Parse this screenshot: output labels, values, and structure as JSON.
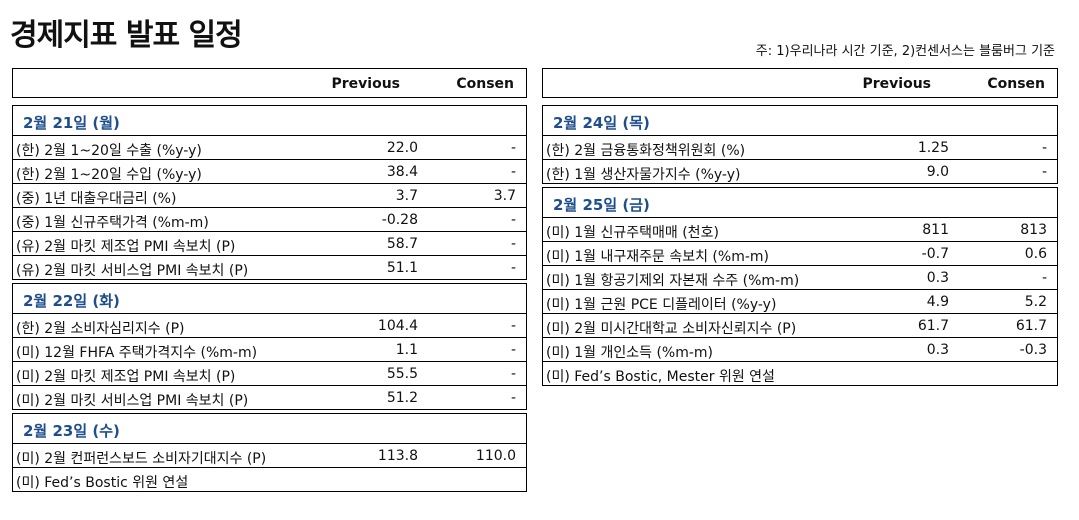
{
  "page": {
    "title": "경제지표 발표 일정",
    "note": "주: 1)우리나라 시간 기준, 2)컨센서스는 블룸버그 기준"
  },
  "columns": {
    "previous": "Previous",
    "consensus": "Consen"
  },
  "left": [
    {
      "date": "2월 21일 (월)",
      "rows": [
        {
          "label": "(한) 2월 1~20일 수출 (%y-y)",
          "previous": "22.0",
          "consensus": "-"
        },
        {
          "label": "(한) 2월 1~20일 수입 (%y-y)",
          "previous": "38.4",
          "consensus": "-"
        },
        {
          "label": "(중) 1년 대출우대금리 (%)",
          "previous": "3.7",
          "consensus": "3.7"
        },
        {
          "label": "(중) 1월 신규주택가격 (%m-m)",
          "previous": "-0.28",
          "consensus": "-"
        },
        {
          "label": "(유) 2월 마킷 제조업 PMI 속보치 (P)",
          "previous": "58.7",
          "consensus": "-"
        },
        {
          "label": "(유) 2월 마킷 서비스업 PMI 속보치 (P)",
          "previous": "51.1",
          "consensus": "-"
        }
      ]
    },
    {
      "date": "2월 22일 (화)",
      "rows": [
        {
          "label": "(한) 2월 소비자심리지수 (P)",
          "previous": "104.4",
          "consensus": "-"
        },
        {
          "label": "(미) 12월 FHFA 주택가격지수 (%m-m)",
          "previous": "1.1",
          "consensus": "-"
        },
        {
          "label": "(미) 2월 마킷 제조업 PMI 속보치 (P)",
          "previous": "55.5",
          "consensus": "-"
        },
        {
          "label": "(미) 2월 마킷 서비스업 PMI 속보치 (P)",
          "previous": "51.2",
          "consensus": "-"
        }
      ]
    },
    {
      "date": "2월 23일 (수)",
      "rows": [
        {
          "label": "(미) 2월 컨퍼런스보드 소비자기대지수 (P)",
          "previous": "113.8",
          "consensus": "110.0"
        },
        {
          "label": "(미) Fed’s Bostic 위원 연설",
          "previous": "",
          "consensus": ""
        }
      ]
    }
  ],
  "right": [
    {
      "date": "2월 24일 (목)",
      "rows": [
        {
          "label": "(한) 2월 금융통화정책위원회 (%)",
          "previous": "1.25",
          "consensus": "-"
        },
        {
          "label": "(한) 1월 생산자물가지수 (%y-y)",
          "previous": "9.0",
          "consensus": "-"
        }
      ]
    },
    {
      "date": "2월 25일 (금)",
      "rows": [
        {
          "label": "(미) 1월 신규주택매매 (천호)",
          "previous": "811",
          "consensus": "813"
        },
        {
          "label": "(미) 1월 내구재주문 속보치 (%m-m)",
          "previous": "-0.7",
          "consensus": "0.6"
        },
        {
          "label": "(미) 1월 항공기제외 자본재 수주 (%m-m)",
          "previous": "0.3",
          "consensus": "-"
        },
        {
          "label": "(미) 1월 근원 PCE 디플레이터 (%y-y)",
          "previous": "4.9",
          "consensus": "5.2"
        },
        {
          "label": "(미) 2월 미시간대학교 소비자신뢰지수 (P)",
          "previous": "61.7",
          "consensus": "61.7"
        },
        {
          "label": "(미) 1월 개인소득 (%m-m)",
          "previous": "0.3",
          "consensus": "-0.3"
        },
        {
          "label": "(미) Fed’s Bostic, Mester 위원 연설",
          "previous": "",
          "consensus": ""
        }
      ]
    }
  ]
}
